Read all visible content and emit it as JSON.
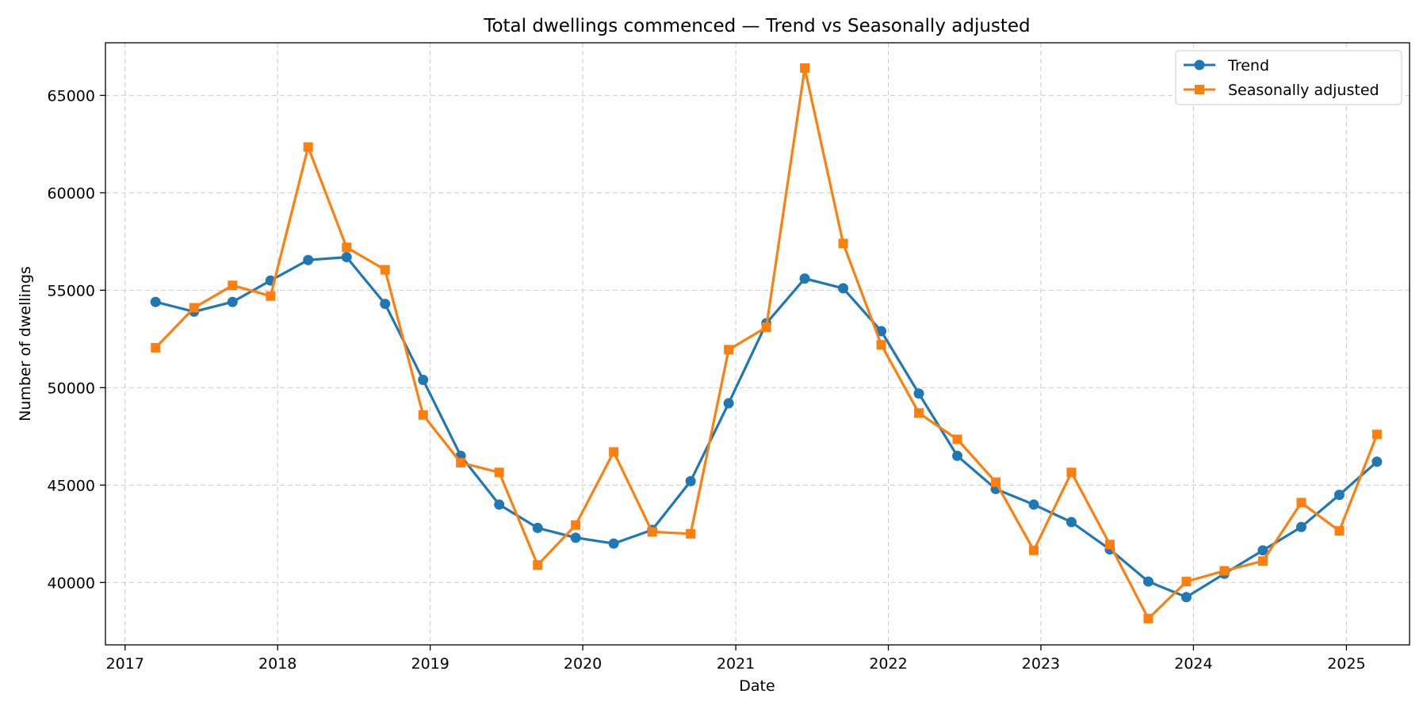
{
  "chart_data": {
    "type": "line",
    "title": "Total dwellings commenced — Trend vs Seasonally adjusted",
    "xlabel": "Date",
    "ylabel": "Number of dwellings",
    "xlim": [
      "2016-11-15",
      "2025-06-01"
    ],
    "ylim": [
      36800,
      67700
    ],
    "x_ticks": [
      "2017",
      "2018",
      "2019",
      "2020",
      "2021",
      "2022",
      "2023",
      "2024",
      "2025"
    ],
    "y_ticks": [
      40000,
      45000,
      50000,
      55000,
      60000,
      65000
    ],
    "grid": true,
    "legend_position": "top-right",
    "x": [
      "2017-03",
      "2017-06",
      "2017-09",
      "2017-12",
      "2018-03",
      "2018-06",
      "2018-09",
      "2018-12",
      "2019-03",
      "2019-06",
      "2019-09",
      "2019-12",
      "2020-03",
      "2020-06",
      "2020-09",
      "2020-12",
      "2021-03",
      "2021-06",
      "2021-09",
      "2021-12",
      "2022-03",
      "2022-06",
      "2022-09",
      "2022-12",
      "2023-03",
      "2023-06",
      "2023-09",
      "2023-12",
      "2024-03",
      "2024-06",
      "2024-09",
      "2024-12",
      "2025-03"
    ],
    "series": [
      {
        "name": "Trend",
        "color": "#1f77b4",
        "marker": "circle",
        "values": [
          54400,
          53900,
          54400,
          55500,
          56550,
          56700,
          54300,
          50400,
          46500,
          44000,
          42800,
          42300,
          42000,
          42700,
          45200,
          49200,
          53300,
          55600,
          55100,
          52900,
          49700,
          46500,
          44800,
          44000,
          43100,
          41700,
          40050,
          39250,
          40450,
          41650,
          42850,
          44500,
          46200
        ]
      },
      {
        "name": "Seasonally adjusted",
        "color": "#ff7f0e",
        "marker": "square",
        "values": [
          52050,
          54100,
          55250,
          54700,
          62350,
          57200,
          56050,
          48600,
          46150,
          45650,
          40900,
          42950,
          46700,
          42600,
          42500,
          51950,
          53100,
          66400,
          57400,
          52200,
          48700,
          47350,
          45150,
          41650,
          45650,
          41950,
          38150,
          40050,
          40600,
          41100,
          44100,
          42650,
          47600
        ]
      }
    ]
  }
}
